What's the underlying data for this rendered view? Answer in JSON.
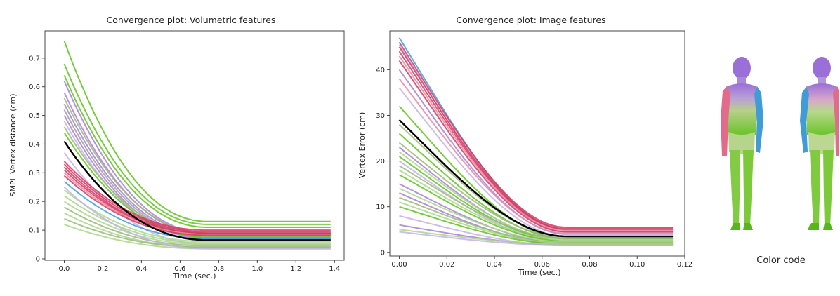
{
  "caption": "Color code",
  "colors": {
    "green": "#5fc21d",
    "lightgreen": "#a8d68a",
    "olive": "#9ab87a",
    "purple": "#a77fd6",
    "lavender": "#c6b0e6",
    "crimson": "#d8365f",
    "pink": "#e58aa0",
    "blue": "#3aa0d8",
    "gray": "#a0a0a0",
    "mean": "#000000",
    "body_purple": "#9a6fd8",
    "body_pink": "#e26b8c",
    "body_blue": "#3f9cd6",
    "body_green": "#7ed23a"
  },
  "chart_data": [
    {
      "type": "line",
      "title": "Convergence plot: Volumetric features",
      "xlabel": "Time (sec.)",
      "ylabel": "SMPL Vertex distance (cm)",
      "xlim": [
        -0.1,
        1.45
      ],
      "ylim": [
        -0.005,
        0.795
      ],
      "xticks": [
        0.0,
        0.2,
        0.4,
        0.6,
        0.8,
        1.0,
        1.2,
        1.4
      ],
      "yticks": [
        0.0,
        0.1,
        0.2,
        0.3,
        0.4,
        0.5,
        0.6,
        0.7
      ],
      "grid": false,
      "x_range": [
        0.0,
        1.38
      ],
      "decay_time_constant": 0.22,
      "mean_curve": {
        "start": 0.41,
        "end": 0.065
      },
      "series": [
        {
          "color": "green",
          "start": 0.76,
          "end": 0.13
        },
        {
          "color": "green",
          "start": 0.68,
          "end": 0.12
        },
        {
          "color": "green",
          "start": 0.64,
          "end": 0.11
        },
        {
          "color": "purple",
          "start": 0.62,
          "end": 0.09
        },
        {
          "color": "purple",
          "start": 0.58,
          "end": 0.085
        },
        {
          "color": "olive",
          "start": 0.56,
          "end": 0.09
        },
        {
          "color": "purple",
          "start": 0.54,
          "end": 0.08
        },
        {
          "color": "gray",
          "start": 0.52,
          "end": 0.075
        },
        {
          "color": "purple",
          "start": 0.5,
          "end": 0.07
        },
        {
          "color": "lavender",
          "start": 0.48,
          "end": 0.065
        },
        {
          "color": "olive",
          "start": 0.46,
          "end": 0.08
        },
        {
          "color": "green",
          "start": 0.44,
          "end": 0.075
        },
        {
          "color": "lavender",
          "start": 0.37,
          "end": 0.05
        },
        {
          "color": "crimson",
          "start": 0.34,
          "end": 0.1
        },
        {
          "color": "crimson",
          "start": 0.33,
          "end": 0.095
        },
        {
          "color": "crimson",
          "start": 0.32,
          "end": 0.09
        },
        {
          "color": "crimson",
          "start": 0.31,
          "end": 0.088
        },
        {
          "color": "pink",
          "start": 0.3,
          "end": 0.085
        },
        {
          "color": "crimson",
          "start": 0.29,
          "end": 0.082
        },
        {
          "color": "blue",
          "start": 0.27,
          "end": 0.07
        },
        {
          "color": "lightgreen",
          "start": 0.24,
          "end": 0.06
        },
        {
          "color": "lightgreen",
          "start": 0.22,
          "end": 0.055
        },
        {
          "color": "lightgreen",
          "start": 0.2,
          "end": 0.05
        },
        {
          "color": "olive",
          "start": 0.18,
          "end": 0.045
        },
        {
          "color": "lightgreen",
          "start": 0.16,
          "end": 0.04
        },
        {
          "color": "olive",
          "start": 0.14,
          "end": 0.04
        },
        {
          "color": "lightgreen",
          "start": 0.12,
          "end": 0.035
        },
        {
          "color": "lavender",
          "start": 0.25,
          "end": 0.035
        }
      ]
    },
    {
      "type": "line",
      "title": "Convergence plot: Image features",
      "xlabel": "Time (sec.)",
      "ylabel": "Vertex Error (cm)",
      "xlim": [
        -0.004,
        0.12
      ],
      "ylim": [
        -0.8,
        48.5
      ],
      "xticks": [
        0.0,
        0.02,
        0.04,
        0.06,
        0.08,
        0.1,
        0.12
      ],
      "xtick_labels": [
        "0.00",
        "0.02",
        "0.04",
        "0.06",
        "0.08",
        "0.10",
        "0.12"
      ],
      "yticks": [
        0,
        10,
        20,
        30,
        40
      ],
      "grid": false,
      "x_range": [
        0.0,
        0.115
      ],
      "mean_curve": {
        "start": 29,
        "end": 3.5
      },
      "series": [
        {
          "color": "blue",
          "start": 47,
          "end": 5.0
        },
        {
          "color": "crimson",
          "start": 46,
          "end": 5.5
        },
        {
          "color": "lavender",
          "start": 45.5,
          "end": 4.5
        },
        {
          "color": "crimson",
          "start": 45,
          "end": 5.2
        },
        {
          "color": "crimson",
          "start": 44,
          "end": 5.0
        },
        {
          "color": "pink",
          "start": 43,
          "end": 4.8
        },
        {
          "color": "crimson",
          "start": 42,
          "end": 4.5
        },
        {
          "color": "purple",
          "start": 40,
          "end": 4.0
        },
        {
          "color": "pink",
          "start": 38,
          "end": 4.2
        },
        {
          "color": "lavender",
          "start": 36,
          "end": 3.5
        },
        {
          "color": "green",
          "start": 32,
          "end": 3.0
        },
        {
          "color": "olive",
          "start": 28,
          "end": 3.5
        },
        {
          "color": "green",
          "start": 26,
          "end": 3.0
        },
        {
          "color": "olive",
          "start": 24,
          "end": 3.2
        },
        {
          "color": "purple",
          "start": 23,
          "end": 2.5
        },
        {
          "color": "lightgreen",
          "start": 22,
          "end": 2.8
        },
        {
          "color": "green",
          "start": 21,
          "end": 2.5
        },
        {
          "color": "lavender",
          "start": 20,
          "end": 2.2
        },
        {
          "color": "olive",
          "start": 19,
          "end": 3.0
        },
        {
          "color": "lightgreen",
          "start": 18,
          "end": 2.6
        },
        {
          "color": "green",
          "start": 17,
          "end": 2.4
        },
        {
          "color": "purple",
          "start": 15,
          "end": 2.0
        },
        {
          "color": "lightgreen",
          "start": 14,
          "end": 2.3
        },
        {
          "color": "purple",
          "start": 13,
          "end": 1.8
        },
        {
          "color": "olive",
          "start": 12,
          "end": 2.1
        },
        {
          "color": "lightgreen",
          "start": 11,
          "end": 2.0
        },
        {
          "color": "green",
          "start": 10,
          "end": 1.8
        },
        {
          "color": "lavender",
          "start": 8,
          "end": 1.5
        },
        {
          "color": "purple",
          "start": 6,
          "end": 1.6
        },
        {
          "color": "lightgreen",
          "start": 5,
          "end": 1.8
        },
        {
          "color": "lavender",
          "start": 4.5,
          "end": 1.5
        }
      ]
    }
  ]
}
